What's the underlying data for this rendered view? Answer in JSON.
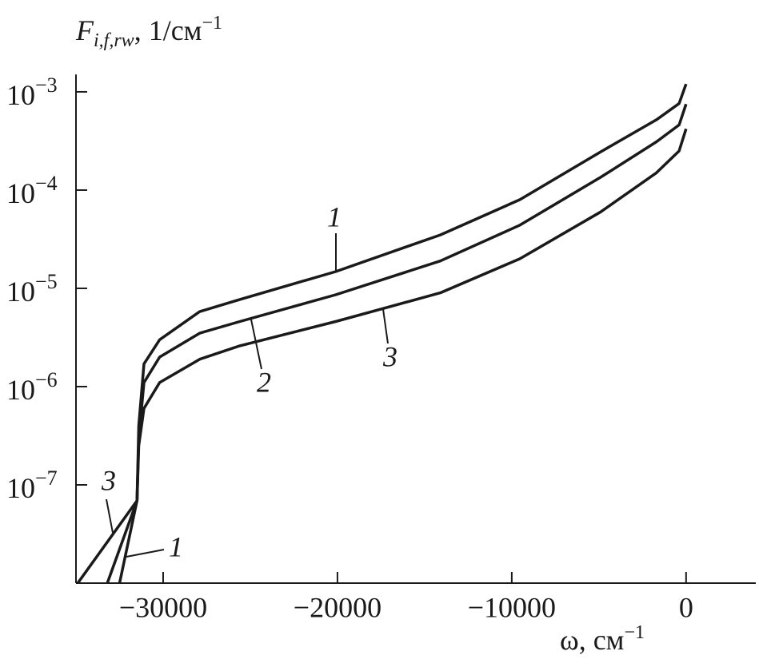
{
  "chart_data": {
    "type": "line",
    "ylabel": {
      "symbol": "F",
      "subscript": "i,f,rw",
      "unit": ", 1/см",
      "exponent": "−1"
    },
    "xlabel": {
      "symbol": "ω",
      "unit": ", см",
      "exponent": "−1"
    },
    "xlim": [
      -35000,
      4000
    ],
    "xticks": [
      {
        "value": -30000,
        "label": "−30000"
      },
      {
        "value": -20000,
        "label": "−20000"
      },
      {
        "value": -10000,
        "label": "−10000"
      },
      0
    ],
    "ylim": [
      1e-08,
      0.0015
    ],
    "yticks": [
      {
        "value": 0.001,
        "label": "10−3"
      },
      {
        "value": 0.0001,
        "label": "10−4"
      },
      {
        "value": 1e-05,
        "label": "10−5"
      },
      {
        "value": 1e-06,
        "label": "10−6"
      },
      {
        "value": 1e-07,
        "label": "10−7"
      }
    ],
    "log_y": true,
    "series": [
      {
        "name": "1",
        "color": "#1a1a1a",
        "x": [
          -32500,
          -31500,
          -31400,
          -31100,
          -30200,
          -27900,
          -25600,
          -20100,
          -14100,
          -9530,
          -4900,
          -1700,
          -400,
          0
        ],
        "values": [
          1e-08,
          6.9e-08,
          4e-07,
          1.7e-06,
          3e-06,
          5.8e-06,
          7.7e-06,
          1.48e-05,
          3.5e-05,
          8e-05,
          0.000245,
          0.00052,
          0.00076,
          0.0012
        ]
      },
      {
        "name": "2",
        "color": "#1a1a1a",
        "x": [
          -33200,
          -31500,
          -31400,
          -31100,
          -30200,
          -27900,
          -25600,
          -20100,
          -14100,
          -9530,
          -4900,
          -1700,
          -400,
          0
        ],
        "values": [
          1e-08,
          6.9e-08,
          3e-07,
          1.1e-06,
          2e-06,
          3.5e-06,
          4.6e-06,
          8.6e-06,
          1.9e-05,
          4.4e-05,
          0.000135,
          0.00031,
          0.00046,
          0.00075
        ]
      },
      {
        "name": "3",
        "color": "#1a1a1a",
        "x": [
          -34900,
          -31500,
          -31400,
          -31100,
          -30200,
          -27900,
          -25600,
          -20100,
          -14100,
          -9530,
          -4900,
          -1700,
          -400,
          0
        ],
        "values": [
          1e-08,
          6.9e-08,
          2.5e-07,
          6e-07,
          1.1e-06,
          1.9e-06,
          2.6e-06,
          4.6e-06,
          9e-06,
          2e-05,
          6e-05,
          0.00015,
          0.00025,
          0.00042
        ]
      }
    ],
    "annotations": [
      "1",
      "2",
      "3",
      "3",
      "1"
    ]
  }
}
